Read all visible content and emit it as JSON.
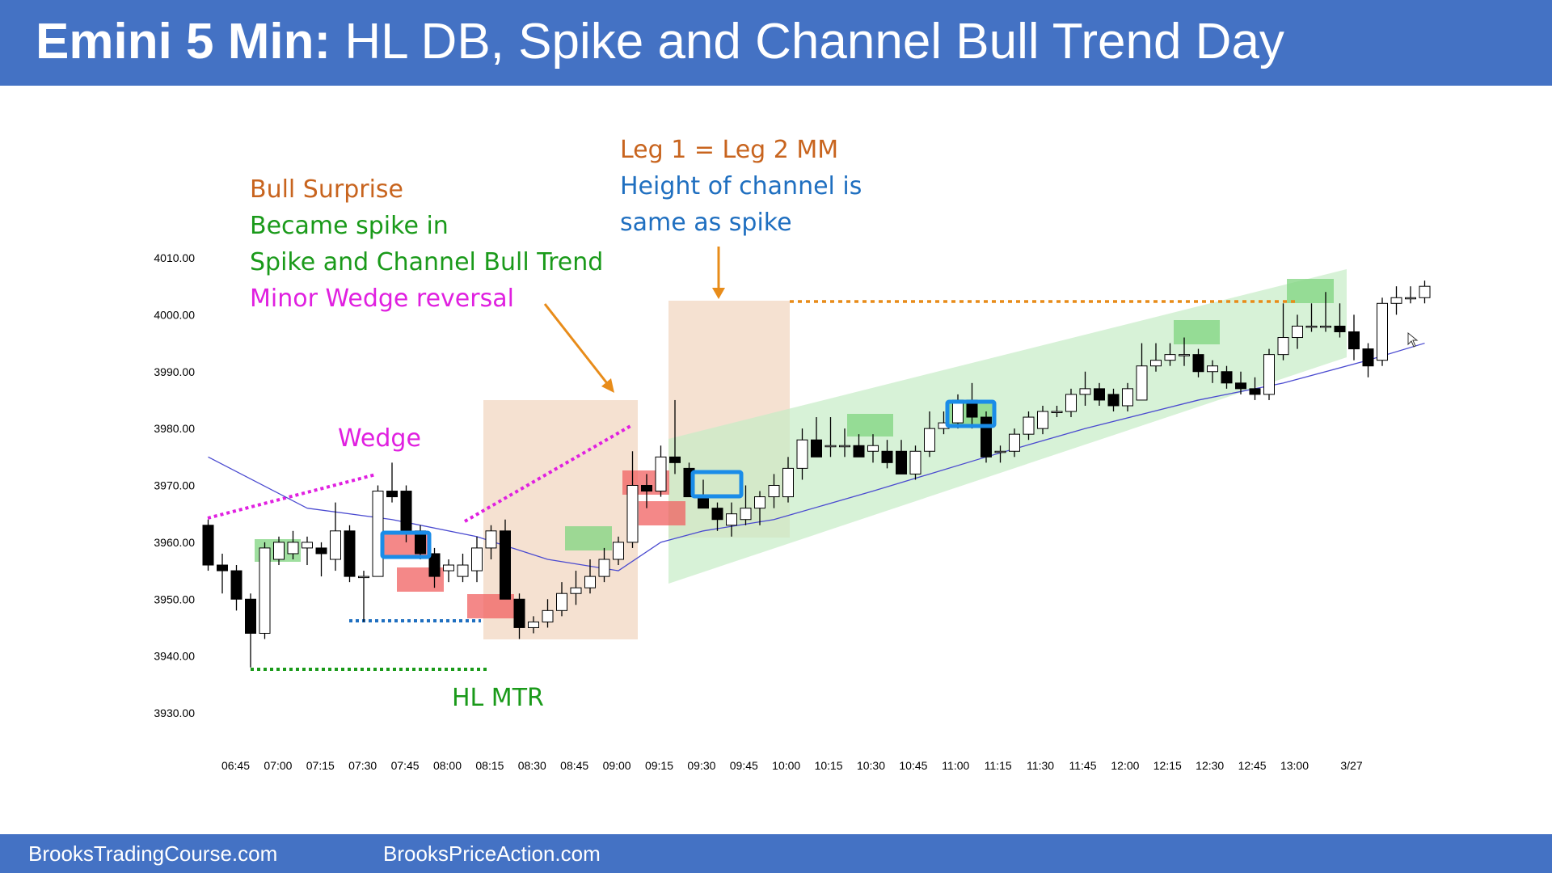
{
  "header": {
    "title_bold": "Emini 5 Min:",
    "title_rest": " HL DB, Spike and Channel Bull Trend Day"
  },
  "footer": {
    "left_site": "BrooksTradingCourse.com",
    "right_site": "BrooksPriceAction.com"
  },
  "colors": {
    "header_bg": "#4472c4",
    "bull_candle": "#ffffff",
    "bear_candle": "#000000",
    "ema": "#4a4ad0",
    "green_text": "#1a9a1a",
    "magenta": "#e020e0",
    "orange": "#c8641e",
    "blue_text": "#1f6fc0"
  },
  "annotations": {
    "bull_surprise": "Bull Surprise",
    "became_spike": "Became spike in",
    "spike_channel": "Spike and Channel Bull Trend",
    "minor_wedge": "Minor Wedge reversal",
    "leg_mm": "Leg 1 = Leg 2 MM",
    "channel_height_1": "Height of channel is",
    "channel_height_2": "same as spike",
    "wedge": "Wedge",
    "hl_mtr": "HL MTR"
  },
  "chart_data": {
    "type": "candlestick",
    "title": "Emini 5 Min: HL DB, Spike and Channel Bull Trend Day",
    "ylim": [
      3930,
      4010
    ],
    "y_ticks": [
      "4010.00",
      "4000.00",
      "3990.00",
      "3980.00",
      "3970.00",
      "3960.00",
      "3950.00",
      "3940.00",
      "3930.00"
    ],
    "x_ticks": [
      "06:45",
      "07:00",
      "07:15",
      "07:30",
      "07:45",
      "08:00",
      "08:15",
      "08:30",
      "08:45",
      "09:00",
      "09:15",
      "09:30",
      "09:45",
      "10:00",
      "10:15",
      "10:30",
      "10:45",
      "11:00",
      "11:15",
      "11:30",
      "11:45",
      "12:00",
      "12:15",
      "12:30",
      "12:45",
      "13:00",
      "3/27"
    ],
    "grid": false,
    "candles": [
      {
        "o": 3963,
        "h": 3964,
        "l": 3955,
        "c": 3956
      },
      {
        "o": 3956,
        "h": 3958,
        "l": 3951,
        "c": 3955
      },
      {
        "o": 3955,
        "h": 3956,
        "l": 3948,
        "c": 3950
      },
      {
        "o": 3950,
        "h": 3951,
        "l": 3938,
        "c": 3944
      },
      {
        "o": 3944,
        "h": 3960,
        "l": 3943,
        "c": 3959
      },
      {
        "o": 3957,
        "h": 3961,
        "l": 3956,
        "c": 3960
      },
      {
        "o": 3958,
        "h": 3962,
        "l": 3957,
        "c": 3960
      },
      {
        "o": 3959,
        "h": 3961,
        "l": 3956,
        "c": 3960
      },
      {
        "o": 3959,
        "h": 3960,
        "l": 3954,
        "c": 3958
      },
      {
        "o": 3957,
        "h": 3967,
        "l": 3955,
        "c": 3962
      },
      {
        "o": 3962,
        "h": 3963,
        "l": 3953,
        "c": 3954
      },
      {
        "o": 3954,
        "h": 3955,
        "l": 3946,
        "c": 3954
      },
      {
        "o": 3954,
        "h": 3970,
        "l": 3954,
        "c": 3969
      },
      {
        "o": 3969,
        "h": 3974,
        "l": 3967,
        "c": 3968
      },
      {
        "o": 3969,
        "h": 3970,
        "l": 3960,
        "c": 3962
      },
      {
        "o": 3962,
        "h": 3963,
        "l": 3957,
        "c": 3958
      },
      {
        "o": 3958,
        "h": 3959,
        "l": 3952,
        "c": 3954
      },
      {
        "o": 3955,
        "h": 3957,
        "l": 3953,
        "c": 3956
      },
      {
        "o": 3954,
        "h": 3958,
        "l": 3953,
        "c": 3956
      },
      {
        "o": 3955,
        "h": 3961,
        "l": 3953,
        "c": 3959
      },
      {
        "o": 3959,
        "h": 3963,
        "l": 3957,
        "c": 3962
      },
      {
        "o": 3962,
        "h": 3964,
        "l": 3950,
        "c": 3950
      },
      {
        "o": 3950,
        "h": 3951,
        "l": 3943,
        "c": 3945
      },
      {
        "o": 3945,
        "h": 3947,
        "l": 3944,
        "c": 3946
      },
      {
        "o": 3946,
        "h": 3950,
        "l": 3945,
        "c": 3948
      },
      {
        "o": 3948,
        "h": 3953,
        "l": 3947,
        "c": 3951
      },
      {
        "o": 3951,
        "h": 3955,
        "l": 3949,
        "c": 3952
      },
      {
        "o": 3952,
        "h": 3957,
        "l": 3951,
        "c": 3954
      },
      {
        "o": 3954,
        "h": 3959,
        "l": 3953,
        "c": 3957
      },
      {
        "o": 3957,
        "h": 3961,
        "l": 3956,
        "c": 3960
      },
      {
        "o": 3960,
        "h": 3976,
        "l": 3959,
        "c": 3970
      },
      {
        "o": 3970,
        "h": 3972,
        "l": 3966,
        "c": 3969
      },
      {
        "o": 3969,
        "h": 3977,
        "l": 3968,
        "c": 3975
      },
      {
        "o": 3975,
        "h": 3985,
        "l": 3972,
        "c": 3974
      },
      {
        "o": 3973,
        "h": 3974,
        "l": 3968,
        "c": 3968
      },
      {
        "o": 3968,
        "h": 3971,
        "l": 3966,
        "c": 3966
      },
      {
        "o": 3966,
        "h": 3967,
        "l": 3962,
        "c": 3964
      },
      {
        "o": 3963,
        "h": 3967,
        "l": 3961,
        "c": 3965
      },
      {
        "o": 3964,
        "h": 3970,
        "l": 3963,
        "c": 3966
      },
      {
        "o": 3966,
        "h": 3969,
        "l": 3963,
        "c": 3968
      },
      {
        "o": 3968,
        "h": 3972,
        "l": 3966,
        "c": 3970
      },
      {
        "o": 3968,
        "h": 3975,
        "l": 3967,
        "c": 3973
      },
      {
        "o": 3973,
        "h": 3980,
        "l": 3971,
        "c": 3978
      },
      {
        "o": 3978,
        "h": 3982,
        "l": 3975,
        "c": 3975
      },
      {
        "o": 3977,
        "h": 3982,
        "l": 3975,
        "c": 3977
      },
      {
        "o": 3977,
        "h": 3980,
        "l": 3975,
        "c": 3977
      },
      {
        "o": 3977,
        "h": 3979,
        "l": 3975,
        "c": 3975
      },
      {
        "o": 3976,
        "h": 3979,
        "l": 3974,
        "c": 3977
      },
      {
        "o": 3976,
        "h": 3978,
        "l": 3973,
        "c": 3974
      },
      {
        "o": 3976,
        "h": 3978,
        "l": 3972,
        "c": 3972
      },
      {
        "o": 3972,
        "h": 3977,
        "l": 3971,
        "c": 3976
      },
      {
        "o": 3976,
        "h": 3983,
        "l": 3975,
        "c": 3980
      },
      {
        "o": 3980,
        "h": 3983,
        "l": 3979,
        "c": 3981
      },
      {
        "o": 3981,
        "h": 3986,
        "l": 3980,
        "c": 3985
      },
      {
        "o": 3985,
        "h": 3988,
        "l": 3980,
        "c": 3982
      },
      {
        "o": 3982,
        "h": 3983,
        "l": 3974,
        "c": 3975
      },
      {
        "o": 3976,
        "h": 3977,
        "l": 3974,
        "c": 3976
      },
      {
        "o": 3976,
        "h": 3980,
        "l": 3975,
        "c": 3979
      },
      {
        "o": 3979,
        "h": 3983,
        "l": 3978,
        "c": 3982
      },
      {
        "o": 3980,
        "h": 3984,
        "l": 3979,
        "c": 3983
      },
      {
        "o": 3983,
        "h": 3984,
        "l": 3982,
        "c": 3983
      },
      {
        "o": 3983,
        "h": 3987,
        "l": 3982,
        "c": 3986
      },
      {
        "o": 3986,
        "h": 3990,
        "l": 3984,
        "c": 3987
      },
      {
        "o": 3987,
        "h": 3988,
        "l": 3984,
        "c": 3985
      },
      {
        "o": 3986,
        "h": 3987,
        "l": 3983,
        "c": 3984
      },
      {
        "o": 3984,
        "h": 3988,
        "l": 3983,
        "c": 3987
      },
      {
        "o": 3985,
        "h": 3995,
        "l": 3985,
        "c": 3991
      },
      {
        "o": 3991,
        "h": 3995,
        "l": 3990,
        "c": 3992
      },
      {
        "o": 3992,
        "h": 3995,
        "l": 3991,
        "c": 3993
      },
      {
        "o": 3993,
        "h": 3996,
        "l": 3991,
        "c": 3993
      },
      {
        "o": 3993,
        "h": 3994,
        "l": 3989,
        "c": 3990
      },
      {
        "o": 3990,
        "h": 3992,
        "l": 3988,
        "c": 3991
      },
      {
        "o": 3990,
        "h": 3991,
        "l": 3987,
        "c": 3988
      },
      {
        "o": 3988,
        "h": 3990,
        "l": 3986,
        "c": 3987
      },
      {
        "o": 3987,
        "h": 3989,
        "l": 3985,
        "c": 3986
      },
      {
        "o": 3986,
        "h": 3994,
        "l": 3985,
        "c": 3993
      },
      {
        "o": 3993,
        "h": 4002,
        "l": 3992,
        "c": 3996
      },
      {
        "o": 3996,
        "h": 4000,
        "l": 3994,
        "c": 3998
      },
      {
        "o": 3998,
        "h": 4002,
        "l": 3997,
        "c": 3998
      },
      {
        "o": 3998,
        "h": 4004,
        "l": 3997,
        "c": 3998
      },
      {
        "o": 3998,
        "h": 4002,
        "l": 3996,
        "c": 3997
      },
      {
        "o": 3997,
        "h": 4000,
        "l": 3992,
        "c": 3994
      },
      {
        "o": 3994,
        "h": 3995,
        "l": 3989,
        "c": 3991
      },
      {
        "o": 3992,
        "h": 4003,
        "l": 3991,
        "c": 4002
      },
      {
        "o": 4002,
        "h": 4005,
        "l": 4000,
        "c": 4003
      },
      {
        "o": 4003,
        "h": 4005,
        "l": 4002,
        "c": 4003
      },
      {
        "o": 4003,
        "h": 4006,
        "l": 4002,
        "c": 4005
      }
    ],
    "ema": [
      [
        0,
        3975
      ],
      [
        7,
        3966
      ],
      [
        13,
        3964
      ],
      [
        19,
        3961
      ],
      [
        24,
        3957
      ],
      [
        29,
        3955
      ],
      [
        32,
        3960
      ],
      [
        35,
        3962
      ],
      [
        40,
        3964
      ],
      [
        47,
        3969
      ],
      [
        55,
        3975
      ],
      [
        62,
        3980
      ],
      [
        70,
        3985
      ],
      [
        76,
        3988
      ],
      [
        82,
        3992
      ],
      [
        86,
        3995
      ]
    ]
  }
}
